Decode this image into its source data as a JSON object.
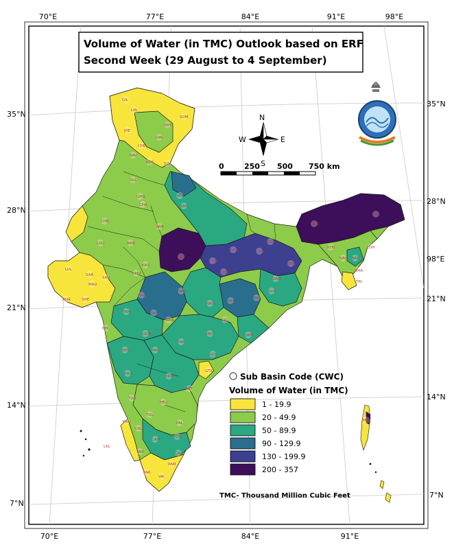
{
  "title": {
    "line1": "Volume of Water (in TMC) Outlook based on ERF",
    "line2": "Second Week (29 August to 4 September)"
  },
  "graticule": {
    "top_longitudes": [
      "70°E",
      "77°E",
      "84°E",
      "91°E",
      "98°E"
    ],
    "bottom_longitudes": [
      "70°E",
      "77°E",
      "84°E",
      "91°E"
    ],
    "left_latitudes": [
      "35°N",
      "28°N",
      "21°N",
      "14°N",
      "7°N"
    ],
    "right_latitudes": [
      "35°N",
      "28°N",
      "98°E",
      "21°N",
      "14°N",
      "7°N"
    ]
  },
  "north_arrow": {
    "n": "N",
    "s": "S",
    "e": "E",
    "w": "W"
  },
  "scale_bar": {
    "labels": [
      "0",
      "250",
      "500",
      "750 km"
    ]
  },
  "legend": {
    "marker_label": "Sub Basin Code (CWC)",
    "title": "Volume of Water (in TMC)",
    "classes": [
      {
        "label": "1 - 19.9",
        "color": "#f7e53c"
      },
      {
        "label": "20 - 49.9",
        "color": "#8dcb4b"
      },
      {
        "label": "50 - 89.9",
        "color": "#2aa882"
      },
      {
        "label": "90 - 129.9",
        "color": "#2a6e8e"
      },
      {
        "label": "130 - 199.9",
        "color": "#3d3f8f"
      },
      {
        "label": "200 - 357",
        "color": "#3d0f5a"
      }
    ]
  },
  "footnote": "TMC- Thousand Million Cubic Feet",
  "basin_codes": [
    "GIL",
    "LIN",
    "SHY",
    "SUM",
    "JHE",
    "GIN",
    "CHE",
    "RAV",
    "BEA",
    "SUJ",
    "SUL",
    "GHG",
    "CHA",
    "YAU",
    "RAM",
    "CHR",
    "LUU",
    "BAN",
    "YAM",
    "KAS",
    "CHU",
    "TON",
    "GHG",
    "KOS",
    "GAN",
    "BRH",
    "LUL",
    "SAR",
    "SAU",
    "MAU",
    "BHA",
    "SHE",
    "NAR",
    "SON",
    "DAM",
    "SUB",
    "MAM",
    "BRA",
    "TAM",
    "TAP",
    "WAR",
    "IND",
    "MAH",
    "NAG",
    "GDM",
    "MAJ",
    "PRA",
    "KRL",
    "VAM",
    "BHU",
    "KRU",
    "BHI",
    "GDL",
    "KRM",
    "GTK",
    "KTP",
    "TUU",
    "PEU",
    "TUL",
    "KAU",
    "CAU",
    "PAL",
    "PON",
    "CAM",
    "CAL",
    "VAR",
    "VAI",
    "PAM",
    "PAR",
    "NAG",
    "KYN",
    "LOH",
    "BAR",
    "SIA",
    "BAR",
    "DHA",
    "TRI",
    "MIZ",
    "LKL",
    "ANI"
  ]
}
